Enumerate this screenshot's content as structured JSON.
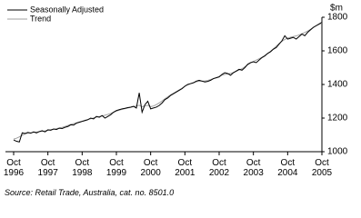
{
  "chart_data": {
    "type": "line",
    "y_unit": "$m",
    "source": "Source: Retail Trade, Australia, cat. no. 8501.0",
    "categories": [
      "Oct 1996",
      null,
      null,
      null,
      null,
      null,
      null,
      null,
      null,
      null,
      null,
      null,
      "Oct 1997",
      null,
      null,
      null,
      null,
      null,
      null,
      null,
      null,
      null,
      null,
      null,
      "Oct 1998",
      null,
      null,
      null,
      null,
      null,
      null,
      null,
      null,
      null,
      null,
      null,
      "Oct 1999",
      null,
      null,
      null,
      null,
      null,
      null,
      null,
      null,
      null,
      null,
      null,
      "Oct 2000",
      null,
      null,
      null,
      null,
      null,
      null,
      null,
      null,
      null,
      null,
      null,
      "Oct 2001",
      null,
      null,
      null,
      null,
      null,
      null,
      null,
      null,
      null,
      null,
      null,
      "Oct 2002",
      null,
      null,
      null,
      null,
      null,
      null,
      null,
      null,
      null,
      null,
      null,
      "Oct 2003",
      null,
      null,
      null,
      null,
      null,
      null,
      null,
      null,
      null,
      null,
      null,
      "Oct 2004",
      null,
      null,
      null,
      null,
      null,
      null,
      null,
      null,
      null,
      null,
      null,
      "Oct 2005"
    ],
    "series": [
      {
        "name": "Seasonally Adjusted",
        "color": "#000000",
        "values": [
          1070,
          1062,
          1058,
          1112,
          1108,
          1115,
          1110,
          1118,
          1112,
          1120,
          1125,
          1118,
          1130,
          1128,
          1135,
          1132,
          1140,
          1138,
          1145,
          1150,
          1160,
          1158,
          1170,
          1175,
          1180,
          1185,
          1190,
          1200,
          1195,
          1210,
          1205,
          1215,
          1200,
          1210,
          1220,
          1235,
          1245,
          1250,
          1255,
          1258,
          1262,
          1265,
          1270,
          1260,
          1350,
          1235,
          1280,
          1300,
          1255,
          1260,
          1265,
          1275,
          1290,
          1310,
          1320,
          1335,
          1345,
          1355,
          1365,
          1375,
          1390,
          1400,
          1405,
          1410,
          1420,
          1425,
          1420,
          1415,
          1418,
          1425,
          1435,
          1440,
          1445,
          1460,
          1470,
          1465,
          1455,
          1470,
          1480,
          1490,
          1485,
          1500,
          1520,
          1530,
          1535,
          1530,
          1545,
          1560,
          1570,
          1585,
          1595,
          1610,
          1620,
          1640,
          1660,
          1690,
          1670,
          1675,
          1680,
          1670,
          1685,
          1700,
          1690,
          1710,
          1725,
          1740,
          1750,
          1760,
          1770
        ]
      },
      {
        "name": "Trend",
        "color": "#a0a0a0",
        "values": [
          1075,
          1080,
          1088,
          1098,
          1106,
          1110,
          1113,
          1115,
          1117,
          1119,
          1121,
          1124,
          1128,
          1131,
          1134,
          1137,
          1141,
          1145,
          1150,
          1156,
          1162,
          1167,
          1172,
          1177,
          1182,
          1187,
          1192,
          1196,
          1201,
          1205,
          1209,
          1213,
          1217,
          1222,
          1228,
          1235,
          1241,
          1247,
          1252,
          1256,
          1260,
          1264,
          1268,
          1272,
          1276,
          1268,
          1272,
          1276,
          1268,
          1272,
          1280,
          1290,
          1302,
          1315,
          1327,
          1338,
          1348,
          1358,
          1368,
          1378,
          1389,
          1398,
          1405,
          1411,
          1416,
          1419,
          1420,
          1421,
          1424,
          1429,
          1435,
          1441,
          1448,
          1455,
          1460,
          1463,
          1466,
          1471,
          1478,
          1486,
          1494,
          1505,
          1517,
          1528,
          1537,
          1545,
          1553,
          1562,
          1572,
          1584,
          1597,
          1612,
          1628,
          1644,
          1657,
          1668,
          1676,
          1681,
          1685,
          1689,
          1695,
          1702,
          1709,
          1718,
          1728,
          1739,
          1749,
          1758,
          1766
        ]
      }
    ],
    "ylim": [
      1000,
      1800
    ],
    "yticks": [
      1000,
      1200,
      1400,
      1600,
      1800
    ],
    "y_axis_side": "right",
    "grid": false,
    "legend": "top-left"
  }
}
